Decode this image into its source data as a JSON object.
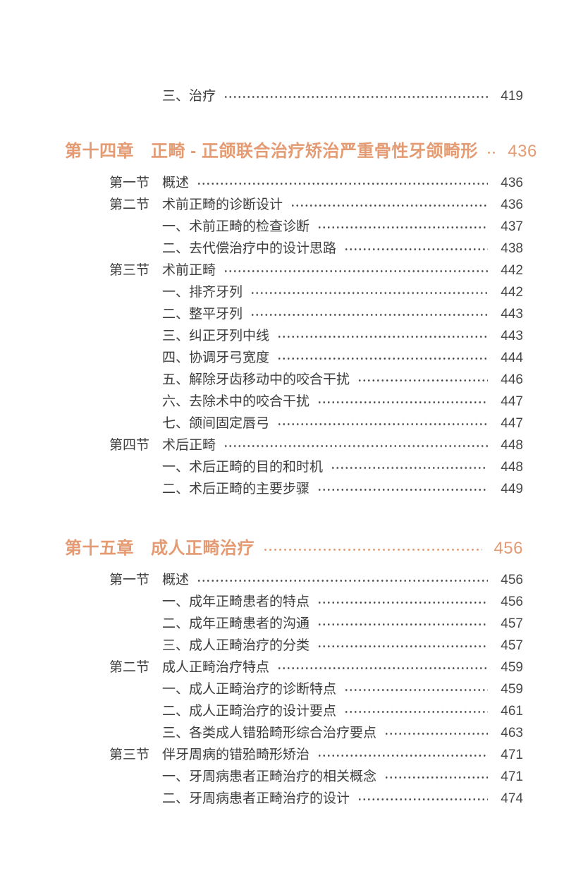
{
  "colors": {
    "accent": "#E49B73",
    "text": "#3D3D3D",
    "page_number": "#474747",
    "leader_dots": "#4A4A4A",
    "background": "#FFFFFF"
  },
  "preceding_entries": [
    {
      "level": "item",
      "title": "三、治疗",
      "page": "419"
    }
  ],
  "chapters": [
    {
      "number": "第十四章",
      "title": "正畸 - 正颌联合治疗矫治严重骨性牙颌畸形",
      "page": "436",
      "entries": [
        {
          "level": "section",
          "label": "第一节",
          "title": "概述",
          "page": "436"
        },
        {
          "level": "section",
          "label": "第二节",
          "title": "术前正畸的诊断设计",
          "page": "436"
        },
        {
          "level": "item",
          "title": "一、术前正畸的检查诊断",
          "page": "437"
        },
        {
          "level": "item",
          "title": "二、去代偿治疗中的设计思路",
          "page": "438"
        },
        {
          "level": "section",
          "label": "第三节",
          "title": "术前正畸",
          "page": "442"
        },
        {
          "level": "item",
          "title": "一、排齐牙列",
          "page": "442"
        },
        {
          "level": "item",
          "title": "二、整平牙列",
          "page": "443"
        },
        {
          "level": "item",
          "title": "三、纠正牙列中线",
          "page": "443"
        },
        {
          "level": "item",
          "title": "四、协调牙弓宽度",
          "page": "444"
        },
        {
          "level": "item",
          "title": "五、解除牙齿移动中的咬合干扰",
          "page": "446"
        },
        {
          "level": "item",
          "title": "六、去除术中的咬合干扰",
          "page": "447"
        },
        {
          "level": "item",
          "title": "七、颌间固定唇弓",
          "page": "447"
        },
        {
          "level": "section",
          "label": "第四节",
          "title": "术后正畸",
          "page": "448"
        },
        {
          "level": "item",
          "title": "一、术后正畸的目的和时机",
          "page": "448"
        },
        {
          "level": "item",
          "title": "二、术后正畸的主要步骤",
          "page": "449"
        }
      ]
    },
    {
      "number": "第十五章",
      "title": "成人正畸治疗",
      "page": "456",
      "entries": [
        {
          "level": "section",
          "label": "第一节",
          "title": "概述",
          "page": "456"
        },
        {
          "level": "item",
          "title": "一、成年正畸患者的特点",
          "page": "456"
        },
        {
          "level": "item",
          "title": "二、成年正畸患者的沟通",
          "page": "457"
        },
        {
          "level": "item",
          "title": "三、成人正畸治疗的分类",
          "page": "457"
        },
        {
          "level": "section",
          "label": "第二节",
          "title": "成人正畸治疗特点",
          "page": "459"
        },
        {
          "level": "item",
          "title": "一、成人正畸治疗的诊断特点",
          "page": "459"
        },
        {
          "level": "item",
          "title": "二、成人正畸治疗的设计要点",
          "page": "461"
        },
        {
          "level": "item",
          "title": "三、各类成人错𬌗畸形综合治疗要点",
          "page": "463"
        },
        {
          "level": "section",
          "label": "第三节",
          "title": "伴牙周病的错𬌗畸形矫治",
          "page": "471"
        },
        {
          "level": "item",
          "title": "一、牙周病患者正畸治疗的相关概念",
          "page": "471"
        },
        {
          "level": "item",
          "title": "二、牙周病患者正畸治疗的设计",
          "page": "474"
        }
      ]
    }
  ]
}
